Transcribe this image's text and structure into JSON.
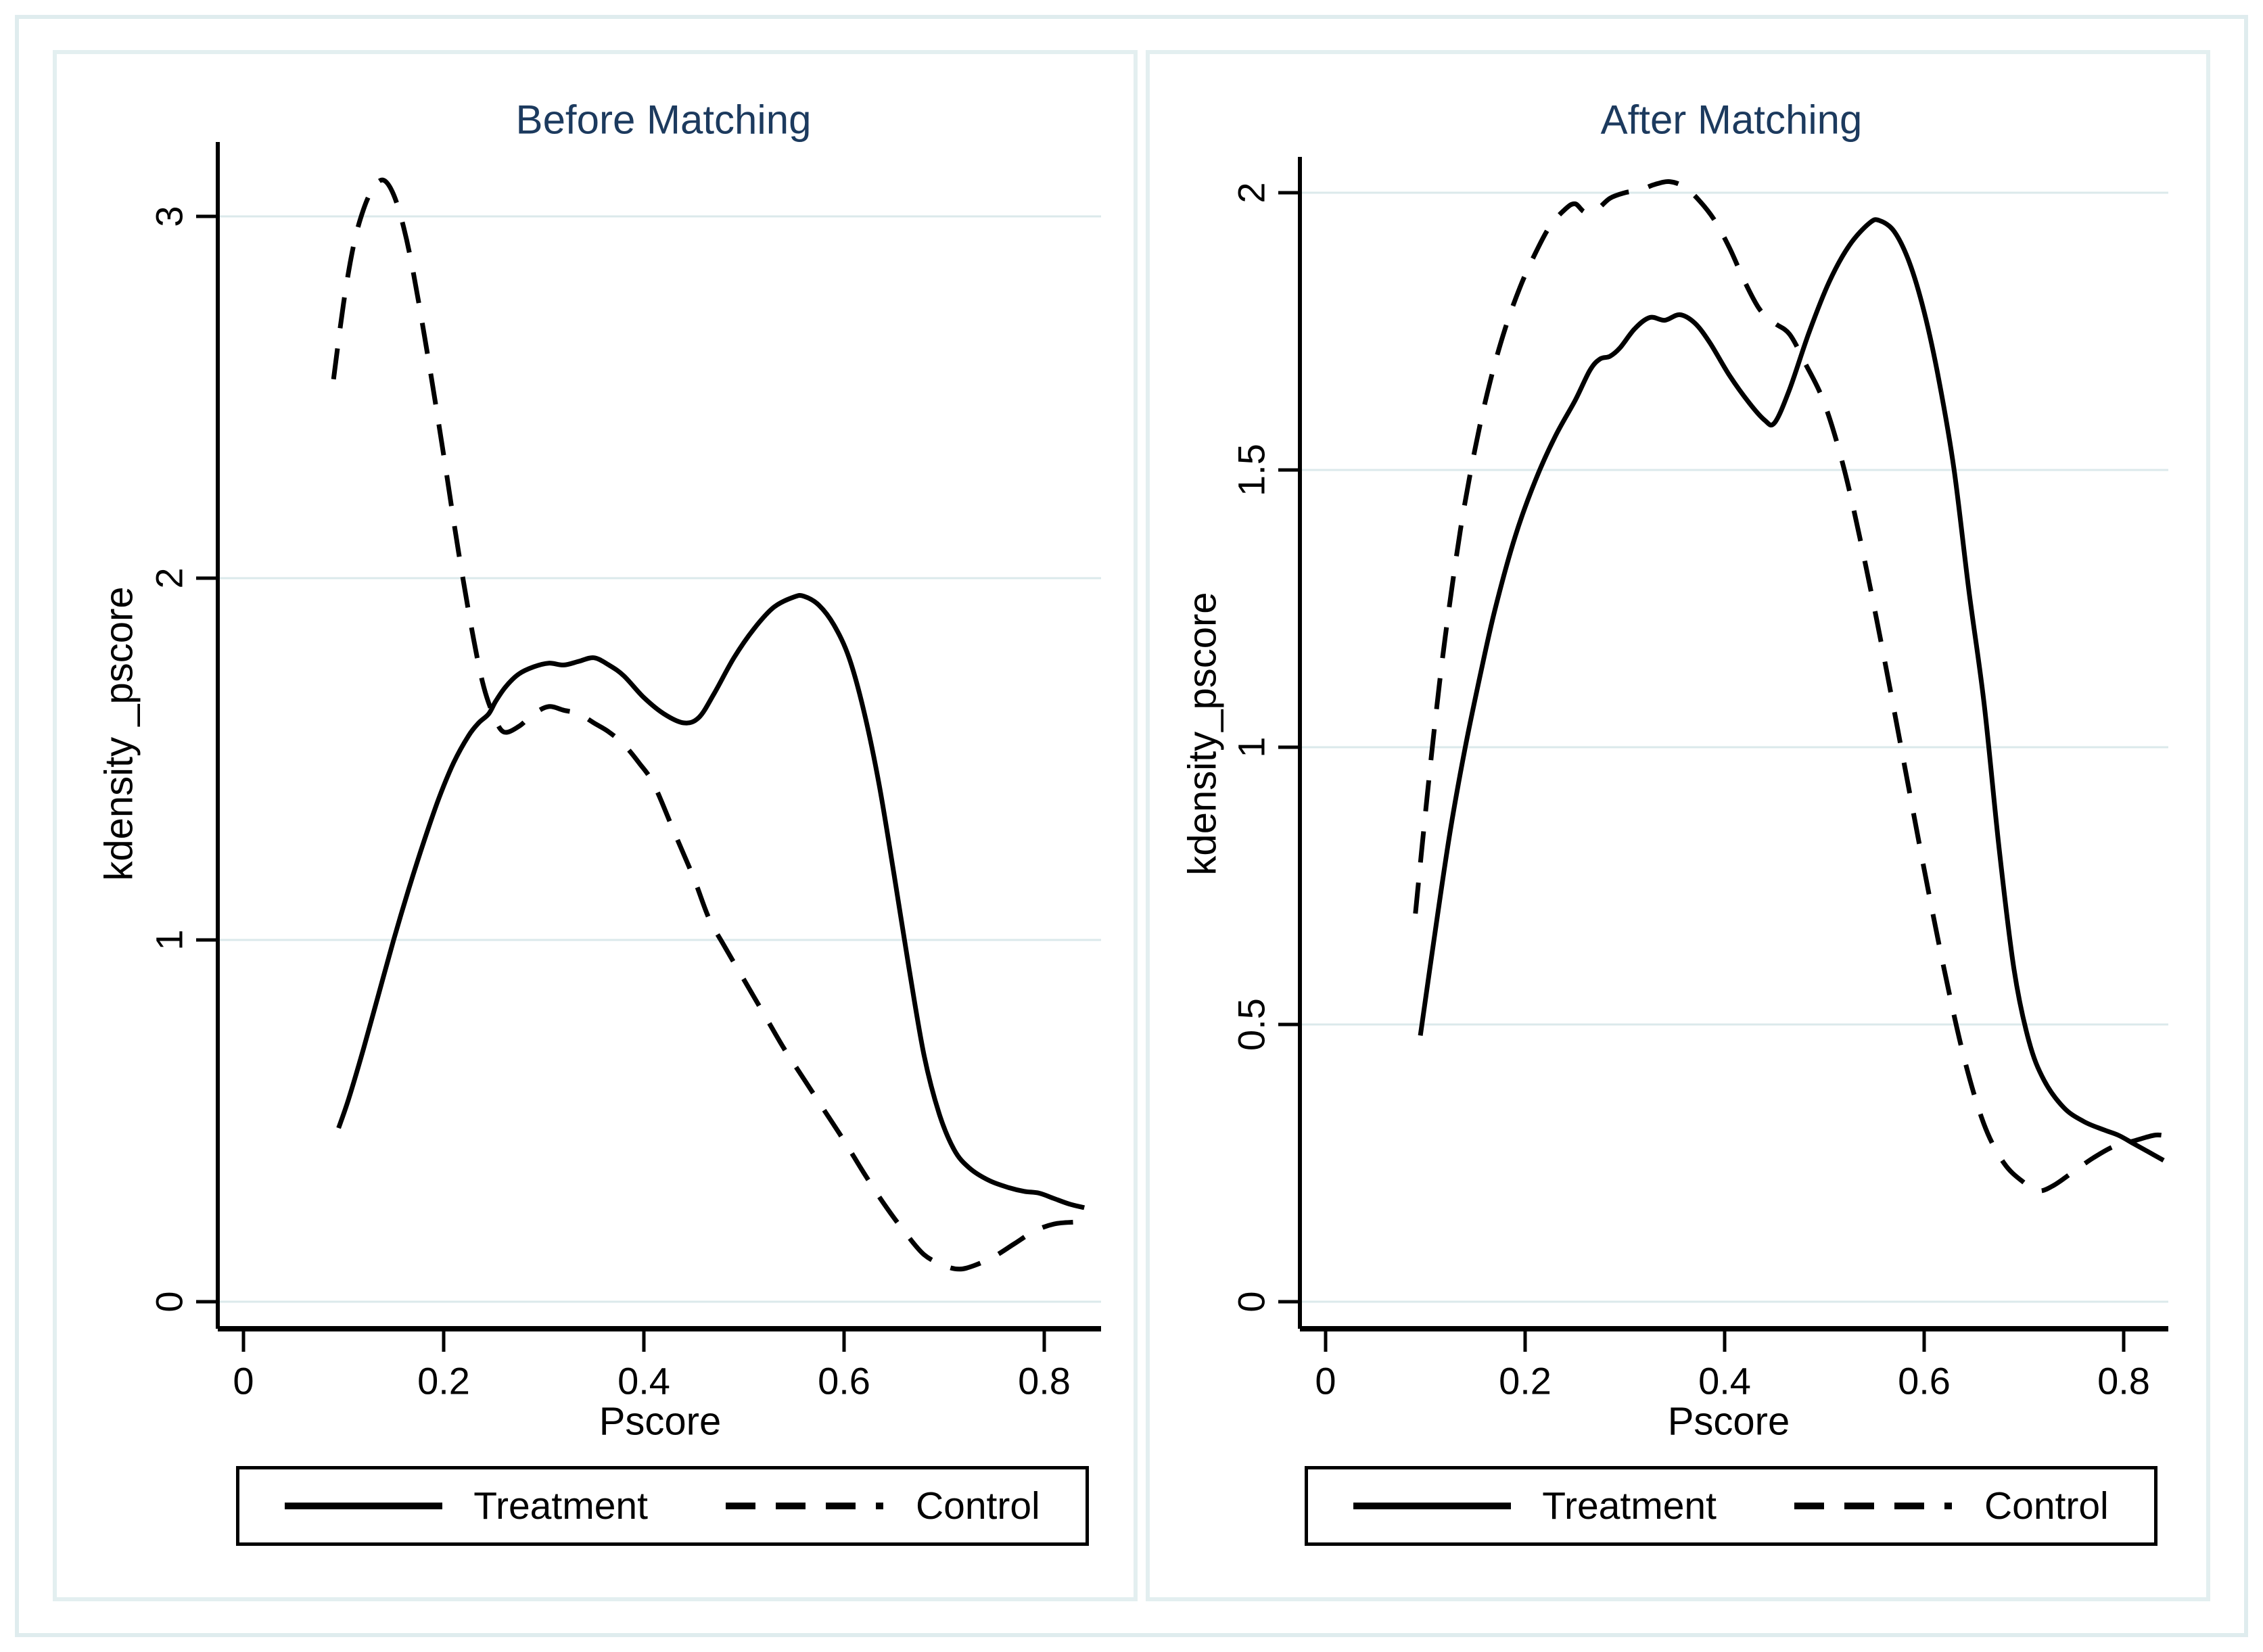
{
  "figure": {
    "background": "#ffffff",
    "frame_color": "#e3eff0",
    "outer_frame_color": "#dfecee",
    "title_color": "#1c3a5e",
    "grid_color": "#dbe9eb",
    "line_color": "#000000"
  },
  "chart_data": [
    {
      "type": "line",
      "title": "Before Matching",
      "xlabel": "Pscore",
      "ylabel": "kdensity _pscore",
      "grid": true,
      "legend_position": "bottom",
      "xlim": [
        0,
        0.86
      ],
      "ylim": [
        0,
        3.2
      ],
      "x_ticks": [
        0,
        0.2,
        0.4,
        0.6,
        0.8
      ],
      "x_tick_labels": [
        "0",
        "0.2",
        "0.4",
        "0.6",
        "0.8"
      ],
      "y_ticks": [
        0,
        1,
        2,
        3
      ],
      "y_tick_labels": [
        "0",
        "1",
        "2",
        "3"
      ],
      "series": [
        {
          "name": "Treatment",
          "style": "solid",
          "points": [
            [
              0.095,
              0.48
            ],
            [
              0.105,
              0.56
            ],
            [
              0.12,
              0.7
            ],
            [
              0.135,
              0.85
            ],
            [
              0.15,
              1.0
            ],
            [
              0.165,
              1.14
            ],
            [
              0.18,
              1.27
            ],
            [
              0.195,
              1.39
            ],
            [
              0.21,
              1.49
            ],
            [
              0.225,
              1.565
            ],
            [
              0.235,
              1.6
            ],
            [
              0.245,
              1.625
            ],
            [
              0.252,
              1.66
            ],
            [
              0.262,
              1.7
            ],
            [
              0.275,
              1.735
            ],
            [
              0.29,
              1.755
            ],
            [
              0.305,
              1.765
            ],
            [
              0.32,
              1.76
            ],
            [
              0.335,
              1.77
            ],
            [
              0.35,
              1.78
            ],
            [
              0.365,
              1.76
            ],
            [
              0.38,
              1.73
            ],
            [
              0.4,
              1.67
            ],
            [
              0.42,
              1.625
            ],
            [
              0.44,
              1.6
            ],
            [
              0.455,
              1.615
            ],
            [
              0.47,
              1.68
            ],
            [
              0.49,
              1.78
            ],
            [
              0.51,
              1.86
            ],
            [
              0.53,
              1.92
            ],
            [
              0.55,
              1.948
            ],
            [
              0.56,
              1.95
            ],
            [
              0.575,
              1.925
            ],
            [
              0.59,
              1.87
            ],
            [
              0.605,
              1.78
            ],
            [
              0.62,
              1.63
            ],
            [
              0.635,
              1.43
            ],
            [
              0.65,
              1.18
            ],
            [
              0.665,
              0.92
            ],
            [
              0.68,
              0.68
            ],
            [
              0.695,
              0.52
            ],
            [
              0.71,
              0.42
            ],
            [
              0.725,
              0.37
            ],
            [
              0.745,
              0.335
            ],
            [
              0.765,
              0.315
            ],
            [
              0.78,
              0.305
            ],
            [
              0.795,
              0.3
            ],
            [
              0.81,
              0.285
            ],
            [
              0.825,
              0.27
            ],
            [
              0.84,
              0.26
            ]
          ]
        },
        {
          "name": "Control",
          "style": "dashed",
          "points": [
            [
              0.09,
              2.55
            ],
            [
              0.1,
              2.76
            ],
            [
              0.11,
              2.92
            ],
            [
              0.12,
              3.02
            ],
            [
              0.13,
              3.08
            ],
            [
              0.14,
              3.1
            ],
            [
              0.15,
              3.06
            ],
            [
              0.16,
              2.97
            ],
            [
              0.17,
              2.84
            ],
            [
              0.185,
              2.6
            ],
            [
              0.2,
              2.34
            ],
            [
              0.215,
              2.07
            ],
            [
              0.23,
              1.83
            ],
            [
              0.24,
              1.7
            ],
            [
              0.25,
              1.62
            ],
            [
              0.26,
              1.575
            ],
            [
              0.275,
              1.59
            ],
            [
              0.29,
              1.625
            ],
            [
              0.305,
              1.645
            ],
            [
              0.32,
              1.635
            ],
            [
              0.335,
              1.625
            ],
            [
              0.35,
              1.6
            ],
            [
              0.365,
              1.575
            ],
            [
              0.38,
              1.54
            ],
            [
              0.395,
              1.49
            ],
            [
              0.41,
              1.43
            ],
            [
              0.43,
              1.3
            ],
            [
              0.45,
              1.17
            ],
            [
              0.465,
              1.06
            ],
            [
              0.48,
              0.985
            ],
            [
              0.5,
              0.89
            ],
            [
              0.52,
              0.795
            ],
            [
              0.54,
              0.7
            ],
            [
              0.56,
              0.615
            ],
            [
              0.58,
              0.53
            ],
            [
              0.6,
              0.445
            ],
            [
              0.62,
              0.355
            ],
            [
              0.64,
              0.27
            ],
            [
              0.66,
              0.195
            ],
            [
              0.68,
              0.13
            ],
            [
              0.7,
              0.1
            ],
            [
              0.715,
              0.09
            ],
            [
              0.73,
              0.1
            ],
            [
              0.75,
              0.125
            ],
            [
              0.77,
              0.16
            ],
            [
              0.79,
              0.195
            ],
            [
              0.81,
              0.215
            ],
            [
              0.83,
              0.22
            ]
          ]
        }
      ]
    },
    {
      "type": "line",
      "title": "After Matching",
      "xlabel": "Pscore",
      "ylabel": "kdensity_pscore",
      "grid": true,
      "legend_position": "bottom",
      "xlim": [
        0,
        0.86
      ],
      "ylim": [
        0,
        2.05
      ],
      "x_ticks": [
        0,
        0.2,
        0.4,
        0.6,
        0.8
      ],
      "x_tick_labels": [
        "0",
        "0.2",
        "0.4",
        "0.6",
        "0.8"
      ],
      "y_ticks": [
        0,
        0.5,
        1,
        1.5,
        2
      ],
      "y_tick_labels": [
        "0",
        "0.5",
        "1",
        "1.5",
        "2"
      ],
      "series": [
        {
          "name": "Treatment",
          "style": "solid",
          "points": [
            [
              0.095,
              0.48
            ],
            [
              0.11,
              0.67
            ],
            [
              0.125,
              0.85
            ],
            [
              0.14,
              1.0
            ],
            [
              0.155,
              1.13
            ],
            [
              0.17,
              1.25
            ],
            [
              0.19,
              1.38
            ],
            [
              0.21,
              1.48
            ],
            [
              0.23,
              1.56
            ],
            [
              0.25,
              1.625
            ],
            [
              0.265,
              1.68
            ],
            [
              0.275,
              1.7
            ],
            [
              0.285,
              1.705
            ],
            [
              0.295,
              1.72
            ],
            [
              0.31,
              1.755
            ],
            [
              0.325,
              1.775
            ],
            [
              0.34,
              1.77
            ],
            [
              0.355,
              1.78
            ],
            [
              0.37,
              1.765
            ],
            [
              0.385,
              1.73
            ],
            [
              0.405,
              1.67
            ],
            [
              0.425,
              1.62
            ],
            [
              0.44,
              1.59
            ],
            [
              0.45,
              1.585
            ],
            [
              0.465,
              1.645
            ],
            [
              0.485,
              1.75
            ],
            [
              0.505,
              1.84
            ],
            [
              0.525,
              1.905
            ],
            [
              0.545,
              1.945
            ],
            [
              0.555,
              1.95
            ],
            [
              0.57,
              1.93
            ],
            [
              0.585,
              1.875
            ],
            [
              0.6,
              1.785
            ],
            [
              0.615,
              1.66
            ],
            [
              0.63,
              1.5
            ],
            [
              0.645,
              1.28
            ],
            [
              0.66,
              1.08
            ],
            [
              0.675,
              0.82
            ],
            [
              0.69,
              0.6
            ],
            [
              0.705,
              0.47
            ],
            [
              0.72,
              0.4
            ],
            [
              0.74,
              0.35
            ],
            [
              0.76,
              0.325
            ],
            [
              0.78,
              0.31
            ],
            [
              0.795,
              0.3
            ],
            [
              0.81,
              0.285
            ],
            [
              0.825,
              0.27
            ],
            [
              0.84,
              0.255
            ]
          ]
        },
        {
          "name": "Control",
          "style": "dashed",
          "points": [
            [
              0.09,
              0.7
            ],
            [
              0.1,
              0.88
            ],
            [
              0.11,
              1.05
            ],
            [
              0.12,
              1.2
            ],
            [
              0.135,
              1.39
            ],
            [
              0.15,
              1.54
            ],
            [
              0.165,
              1.66
            ],
            [
              0.18,
              1.755
            ],
            [
              0.195,
              1.83
            ],
            [
              0.21,
              1.89
            ],
            [
              0.225,
              1.94
            ],
            [
              0.24,
              1.97
            ],
            [
              0.25,
              1.98
            ],
            [
              0.26,
              1.965
            ],
            [
              0.272,
              1.97
            ],
            [
              0.285,
              1.99
            ],
            [
              0.3,
              2.0
            ],
            [
              0.315,
              2.005
            ],
            [
              0.33,
              2.015
            ],
            [
              0.345,
              2.02
            ],
            [
              0.36,
              2.01
            ],
            [
              0.375,
              1.985
            ],
            [
              0.39,
              1.95
            ],
            [
              0.405,
              1.9
            ],
            [
              0.42,
              1.84
            ],
            [
              0.435,
              1.79
            ],
            [
              0.45,
              1.765
            ],
            [
              0.465,
              1.745
            ],
            [
              0.48,
              1.695
            ],
            [
              0.5,
              1.62
            ],
            [
              0.52,
              1.5
            ],
            [
              0.54,
              1.34
            ],
            [
              0.56,
              1.16
            ],
            [
              0.58,
              0.97
            ],
            [
              0.6,
              0.78
            ],
            [
              0.62,
              0.6
            ],
            [
              0.64,
              0.44
            ],
            [
              0.66,
              0.32
            ],
            [
              0.68,
              0.25
            ],
            [
              0.7,
              0.215
            ],
            [
              0.715,
              0.2
            ],
            [
              0.73,
              0.21
            ],
            [
              0.75,
              0.235
            ],
            [
              0.77,
              0.26
            ],
            [
              0.79,
              0.28
            ],
            [
              0.81,
              0.29
            ],
            [
              0.83,
              0.3
            ],
            [
              0.84,
              0.3
            ]
          ]
        }
      ]
    }
  ]
}
